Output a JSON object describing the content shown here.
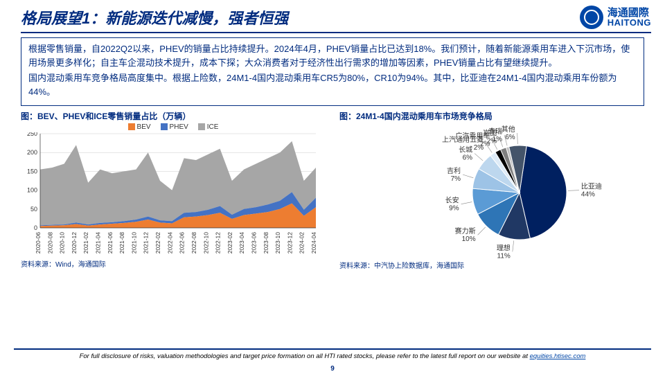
{
  "header": {
    "title": "格局展望1：新能源迭代减慢，强者恒强",
    "logo_cn": "海通國際",
    "logo_en": "HAITONG"
  },
  "body": {
    "p1": "根据零售销量，自2022Q2以来，PHEV的销量占比持续提升。2024年4月，PHEV销量占比已达到18%。我们预计，随着新能源乘用车进入下沉市场，使用场景更多样化；自主车企混动技术提升，成本下探；大众消费者对于经济性出行需求的增加等因素，PHEV销量占比有望继续提升。",
    "p2": "国内混动乘用车竞争格局高度集中。根据上险数，24M1-4国内混动乘用车CR5为80%，CR10为94%。其中，比亚迪在24M1-4国内混动乘用车份额为44%。"
  },
  "chart_left": {
    "title": "图：BEV、PHEV和ICE零售销量占比（万辆）",
    "source": "资料来源：Wind，海通国际",
    "legend": {
      "bev": "BEV",
      "phev": "PHEV",
      "ice": "ICE"
    },
    "colors": {
      "bev": "#ed7d31",
      "phev": "#4472c4",
      "ice": "#a6a6a6"
    },
    "x_labels": [
      "2020-06",
      "2020-08",
      "2020-10",
      "2020-12",
      "2021-02",
      "2021-04",
      "2021-06",
      "2021-08",
      "2021-10",
      "2021-12",
      "2022-02",
      "2022-04",
      "2022-06",
      "2022-08",
      "2022-10",
      "2022-12",
      "2023-02",
      "2023-04",
      "2023-06",
      "2023-08",
      "2023-10",
      "2023-12",
      "2024-02",
      "2024-04"
    ],
    "xlim": [
      0,
      23
    ],
    "ylim": [
      0,
      250
    ],
    "ytick_step": 50,
    "ice_total": [
      155,
      160,
      170,
      220,
      120,
      155,
      145,
      150,
      155,
      200,
      125,
      100,
      185,
      180,
      195,
      210,
      125,
      155,
      170,
      185,
      200,
      230,
      125,
      160
    ],
    "phev_cum": [
      7,
      8,
      9,
      14,
      9,
      13,
      15,
      18,
      22,
      30,
      20,
      18,
      40,
      42,
      48,
      58,
      35,
      50,
      55,
      62,
      72,
      95,
      48,
      80
    ],
    "bev_cum": [
      5,
      6,
      7,
      10,
      6,
      9,
      11,
      13,
      16,
      22,
      14,
      12,
      28,
      30,
      34,
      40,
      24,
      34,
      38,
      42,
      50,
      65,
      32,
      55
    ]
  },
  "chart_right": {
    "title": "图：24M1-4国内混动乘用车市场竞争格局",
    "source": "资料来源：中汽协上险数据库，海通国际",
    "slices": [
      {
        "label": "比亚迪",
        "pct": 44,
        "color": "#002060"
      },
      {
        "label": "理想",
        "pct": 11,
        "color": "#203864"
      },
      {
        "label": "赛力斯",
        "pct": 10,
        "color": "#2e75b6"
      },
      {
        "label": "长安",
        "pct": 9,
        "color": "#5b9bd5"
      },
      {
        "label": "吉利",
        "pct": 7,
        "color": "#9dc3e6"
      },
      {
        "label": "长城",
        "pct": 6,
        "color": "#bdd7ee"
      },
      {
        "label": "上汽通用五菱",
        "pct": 2,
        "color": "#deebf7"
      },
      {
        "label": "广汽乘用车",
        "pct": 2,
        "color": "#000000"
      },
      {
        "label": "岚图",
        "pct": 2,
        "color": "#7f7f7f"
      },
      {
        "label": "奇瑞",
        "pct": 1,
        "color": "#bfbfbf"
      },
      {
        "label": "其他",
        "pct": 6,
        "color": "#44546a"
      }
    ]
  },
  "footer": {
    "disclaimer_prefix": "For full disclosure of risks, valuation methodologies and target price formation on all HTI rated stocks, please refer to the latest full report on our website at ",
    "disclaimer_link": "equities.htisec.com",
    "page": "9"
  }
}
